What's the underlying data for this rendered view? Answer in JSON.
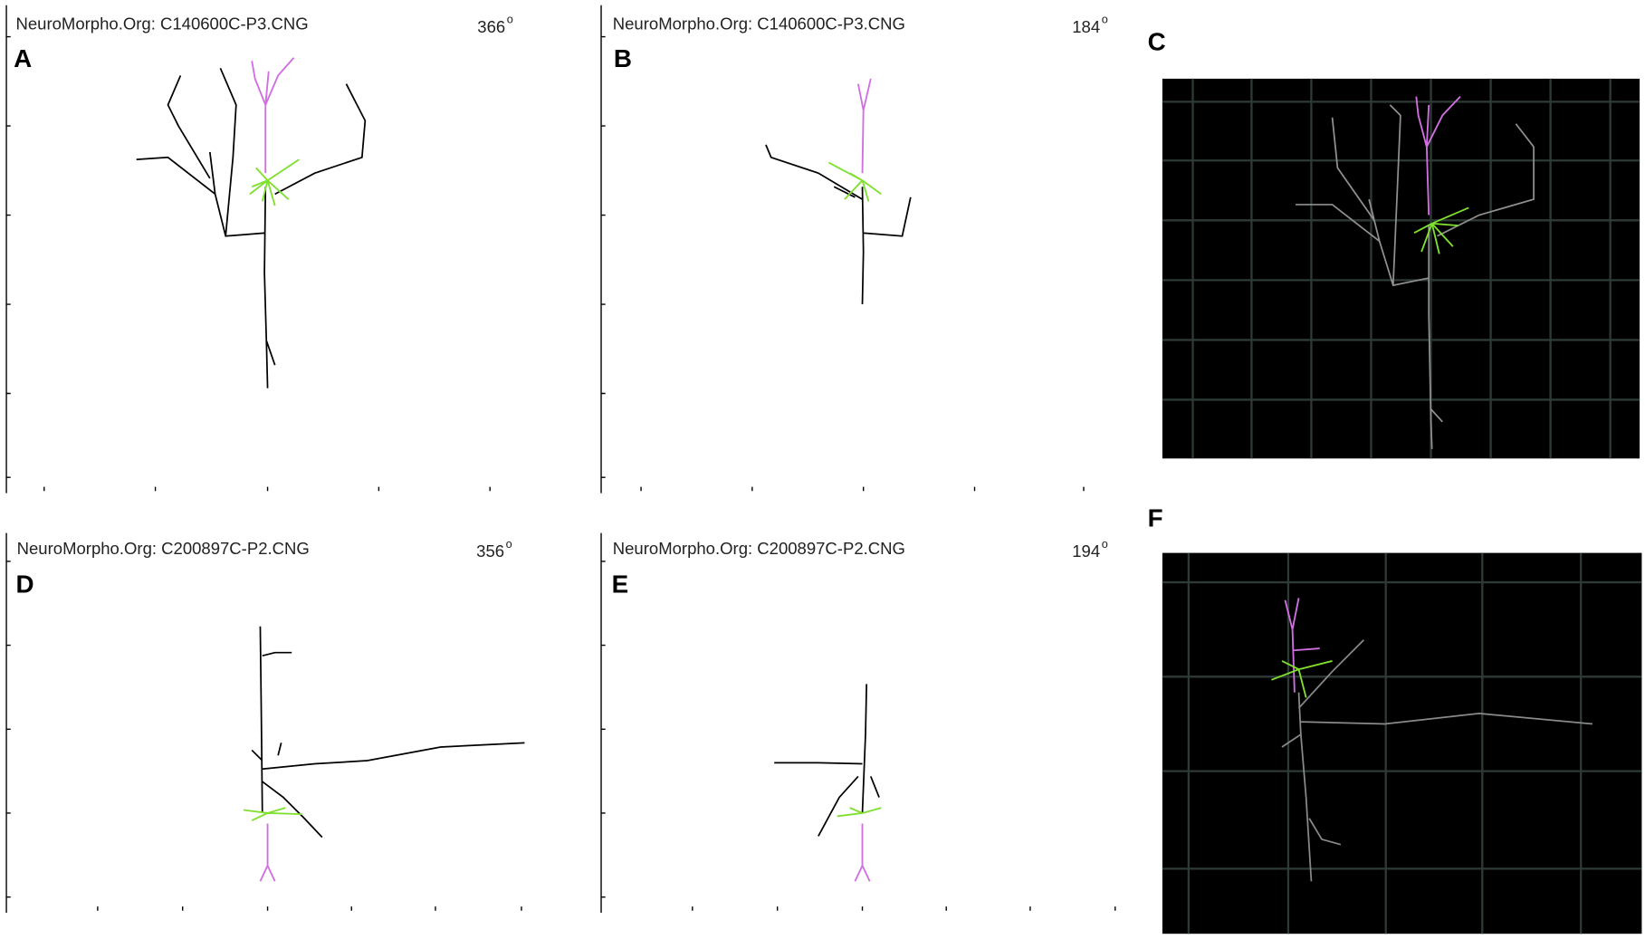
{
  "panels": [
    {
      "letter": "A",
      "title": "NeuroMorpho.Org: C140600C-P3.CNG",
      "angle": "366",
      "degree": "o"
    },
    {
      "letter": "B",
      "title": "NeuroMorpho.Org: C140600C-P3.CNG",
      "angle": "184",
      "degree": "o"
    },
    {
      "letter": "C"
    },
    {
      "letter": "D",
      "title": "NeuroMorpho.Org: C200897C-P2.CNG",
      "angle": "356",
      "degree": "o"
    },
    {
      "letter": "E",
      "title": "NeuroMorpho.Org: C200897C-P2.CNG",
      "angle": "194",
      "degree": "o"
    },
    {
      "letter": "F"
    }
  ]
}
